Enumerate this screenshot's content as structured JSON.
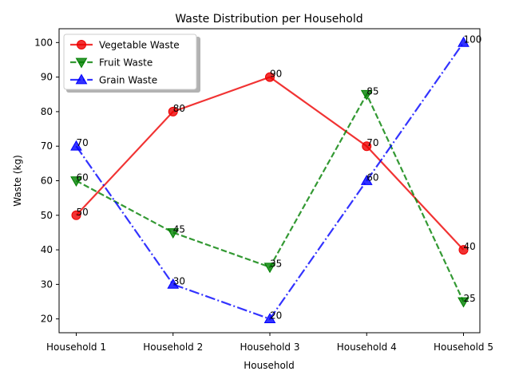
{
  "chart_data": {
    "type": "line",
    "title": "Waste Distribution per Household",
    "xlabel": "Household",
    "ylabel": "Waste (kg)",
    "categories": [
      "Household 1",
      "Household 2",
      "Household 3",
      "Household 4",
      "Household 5"
    ],
    "ylim": [
      16,
      104
    ],
    "yticks": [
      20,
      30,
      40,
      50,
      60,
      70,
      80,
      90,
      100
    ],
    "grid": false,
    "legend_position": "top-left",
    "series": [
      {
        "name": "Vegetable Waste",
        "values": [
          50,
          80,
          90,
          70,
          40
        ],
        "color": "#ee0000",
        "line_style": "solid",
        "marker": "circle"
      },
      {
        "name": "Fruit Waste",
        "values": [
          60,
          45,
          35,
          85,
          25
        ],
        "color": "#008000",
        "line_style": "dashed",
        "marker": "triangle-down"
      },
      {
        "name": "Grain Waste",
        "values": [
          70,
          30,
          20,
          60,
          100
        ],
        "color": "#0000ff",
        "line_style": "dash-dot",
        "marker": "triangle-up"
      }
    ]
  }
}
